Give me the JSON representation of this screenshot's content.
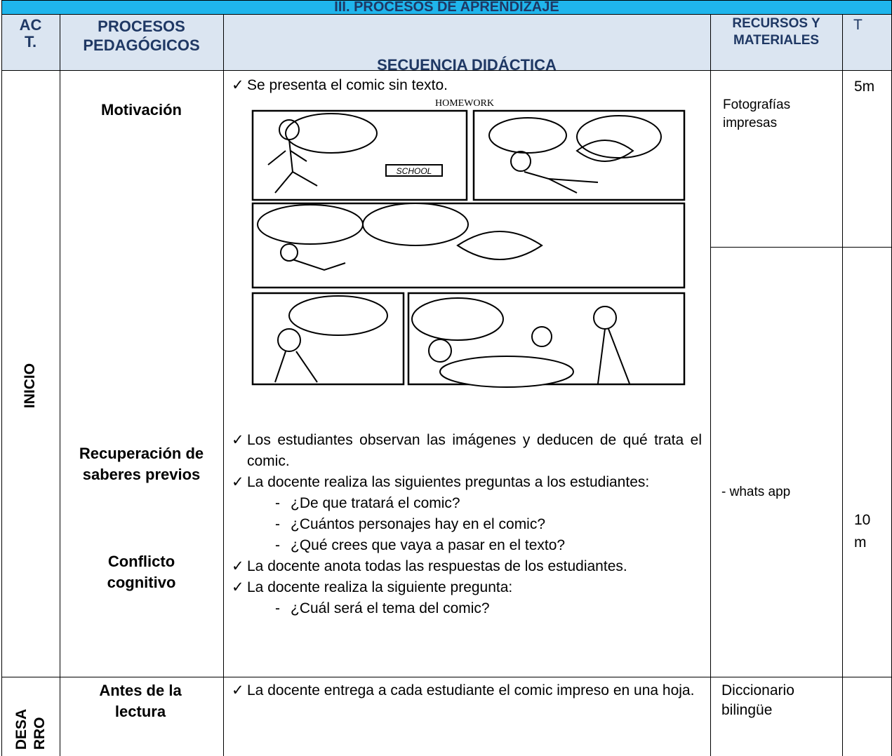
{
  "title": "III. PROCESOS DE APRENDIZAJE",
  "header": {
    "act": [
      "AC",
      "T."
    ],
    "procesos": [
      "PROCESOS",
      "PEDAGÓGICOS"
    ],
    "secuencia": "SECUENCIA DIDÁCTICA",
    "recursos": [
      "RECURSOS Y",
      "MATERIALES"
    ],
    "time": "T"
  },
  "inicio": {
    "act": "INICIO",
    "procesos": [
      "Motivación",
      "Recuperación de saberes previos",
      "Conflicto cognitivo"
    ],
    "intro": "Se presenta el comic sin texto.",
    "comic": {
      "title": "HOMEWORK",
      "sign": "SCHOOL"
    },
    "steps": [
      {
        "text": "Los estudiantes observan las imágenes y deducen de qué trata el comic.",
        "sub": []
      },
      {
        "text": "La docente realiza las siguientes preguntas a los estudiantes:",
        "sub": [
          "¿De que tratará el comic?",
          "¿Cuántos personajes hay en el comic?",
          "¿Qué crees que vaya a pasar en el texto?"
        ]
      },
      {
        "text": "La docente anota todas las respuestas de los estudiantes.",
        "sub": []
      },
      {
        "text": "La docente realiza la siguiente pregunta:",
        "sub": [
          "¿Cuál será el tema del comic?"
        ]
      }
    ],
    "recursos": [
      "Fotografías impresas",
      "- whats app"
    ],
    "time": [
      "5m",
      "10 m"
    ]
  },
  "desarrollo": {
    "act": [
      "DESA",
      "RRO"
    ],
    "procesos": "Antes de la lectura",
    "step": "La docente entrega a cada estudiante el comic impreso en una hoja.",
    "recursos": "Diccionario bilingüe"
  }
}
